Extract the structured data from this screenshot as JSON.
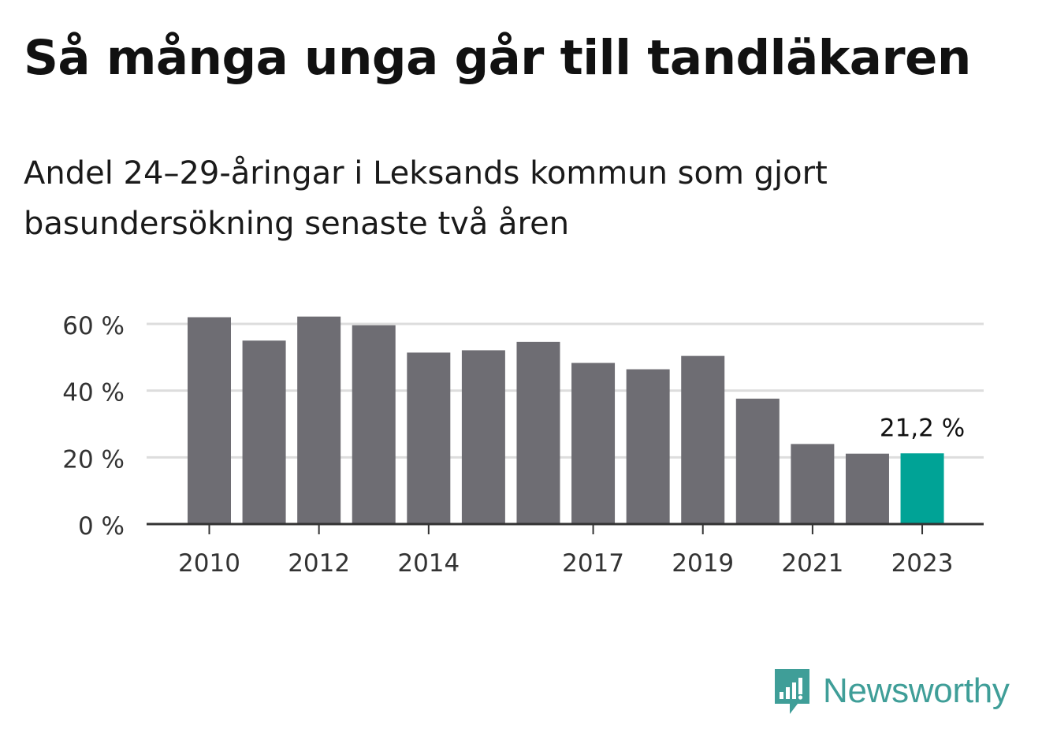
{
  "header": {
    "title": "Så många unga går till tandläkaren",
    "subtitle": "Andel 24–29-åringar i Leksands kommun som gjort basundersökning senaste två åren"
  },
  "chart_data": {
    "type": "bar",
    "categories": [
      "2010",
      "2011",
      "2012",
      "2013",
      "2014",
      "2015",
      "2016",
      "2017",
      "2018",
      "2019",
      "2020",
      "2021",
      "2022",
      "2023"
    ],
    "values": [
      62.0,
      55.0,
      62.2,
      59.6,
      51.4,
      52.1,
      54.6,
      48.3,
      46.4,
      50.4,
      37.6,
      24.0,
      21.1,
      21.2
    ],
    "x_tick_labels": [
      "2010",
      "2012",
      "2014",
      "2017",
      "2019",
      "2021",
      "2023"
    ],
    "y_ticks": [
      0,
      20,
      40,
      60
    ],
    "y_tick_labels": [
      "0 %",
      "20 %",
      "40 %",
      "60 %"
    ],
    "ylim": [
      0,
      60
    ],
    "grid": true,
    "highlight": {
      "category": "2023",
      "label": "21,2 %"
    },
    "colors": {
      "bar": "#6e6d73",
      "highlight": "#00a396",
      "grid": "#dddddd",
      "axis": "#333333"
    }
  },
  "footer": {
    "brand": "Newsworthy",
    "brand_color": "#3f9e98"
  }
}
